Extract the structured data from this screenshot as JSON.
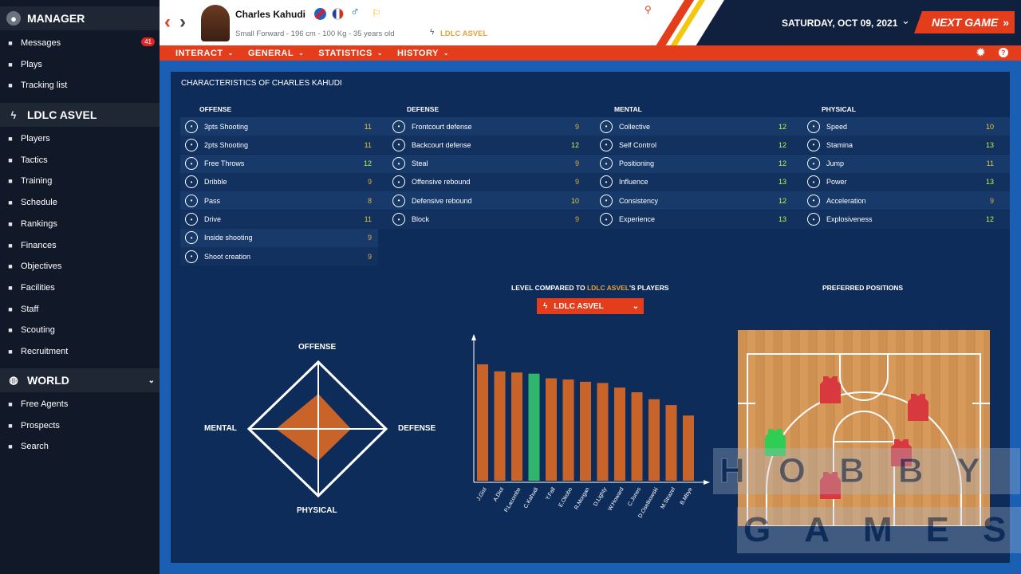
{
  "sidebar": {
    "manager_label": "MANAGER",
    "manager_items": [
      {
        "label": "Messages",
        "icon": "envelope-icon",
        "badge": "41"
      },
      {
        "label": "Plays",
        "icon": "clipboard-icon"
      },
      {
        "label": "Tracking list",
        "icon": "star-icon"
      }
    ],
    "team_label": "LDLC ASVEL",
    "team_items": [
      {
        "label": "Players",
        "icon": "players-icon"
      },
      {
        "label": "Tactics",
        "icon": "tactics-icon"
      },
      {
        "label": "Training",
        "icon": "training-icon"
      },
      {
        "label": "Schedule",
        "icon": "calendar-icon"
      },
      {
        "label": "Rankings",
        "icon": "rankings-icon"
      },
      {
        "label": "Finances",
        "icon": "finances-icon"
      },
      {
        "label": "Objectives",
        "icon": "objectives-icon"
      },
      {
        "label": "Facilities",
        "icon": "facilities-icon"
      },
      {
        "label": "Staff",
        "icon": "staff-icon"
      },
      {
        "label": "Scouting",
        "icon": "binoculars-icon"
      },
      {
        "label": "Recruitment",
        "icon": "recruitment-icon"
      }
    ],
    "world_label": "WORLD",
    "world_items": [
      {
        "label": "Free Agents",
        "icon": "free-agents-icon"
      },
      {
        "label": "Prospects",
        "icon": "prospects-icon"
      },
      {
        "label": "Search",
        "icon": "search-icon"
      }
    ]
  },
  "header": {
    "player_name": "Charles Kahudi",
    "player_info": "Small Forward - 196 cm - 100 Kg - 35 years old",
    "club": "LDLC ASVEL",
    "date": "SATURDAY, OCT 09, 2021",
    "next_game": "NEXT GAME"
  },
  "menu": [
    "INTERACT",
    "GENERAL",
    "STATISTICS",
    "HISTORY"
  ],
  "characteristics": {
    "title": "CHARACTERISTICS OF CHARLES KAHUDI",
    "columns": [
      {
        "title": "OFFENSE",
        "attrs": [
          {
            "name": "3pts Shooting",
            "value": "11"
          },
          {
            "name": "2pts Shooting",
            "value": "11"
          },
          {
            "name": "Free Throws",
            "value": "12"
          },
          {
            "name": "Dribble",
            "value": "9"
          },
          {
            "name": "Pass",
            "value": "8"
          },
          {
            "name": "Drive",
            "value": "11"
          },
          {
            "name": "Inside shooting",
            "value": "9"
          },
          {
            "name": "Shoot creation",
            "value": "9"
          }
        ]
      },
      {
        "title": "DEFENSE",
        "attrs": [
          {
            "name": "Frontcourt defense",
            "value": "9"
          },
          {
            "name": "Backcourt defense",
            "value": "12"
          },
          {
            "name": "Steal",
            "value": "9"
          },
          {
            "name": "Offensive rebound",
            "value": "9"
          },
          {
            "name": "Defensive rebound",
            "value": "10"
          },
          {
            "name": "Block",
            "value": "9"
          }
        ]
      },
      {
        "title": "MENTAL",
        "attrs": [
          {
            "name": "Collective",
            "value": "12"
          },
          {
            "name": "Self Control",
            "value": "12"
          },
          {
            "name": "Positioning",
            "value": "12"
          },
          {
            "name": "Influence",
            "value": "13"
          },
          {
            "name": "Consistency",
            "value": "12"
          },
          {
            "name": "Experience",
            "value": "13"
          }
        ]
      },
      {
        "title": "PHYSICAL",
        "attrs": [
          {
            "name": "Speed",
            "value": "10"
          },
          {
            "name": "Stamina",
            "value": "13"
          },
          {
            "name": "Jump",
            "value": "11"
          },
          {
            "name": "Power",
            "value": "13"
          },
          {
            "name": "Acceleration",
            "value": "9"
          },
          {
            "name": "Explosiveness",
            "value": "12"
          }
        ]
      }
    ]
  },
  "radar": {
    "top": "OFFENSE",
    "right": "DEFENSE",
    "bottom": "PHYSICAL",
    "left": "MENTAL"
  },
  "comparison": {
    "title_prefix": "LEVEL COMPARED TO ",
    "title_team": "LDLC ASVEL",
    "title_suffix": "'S PLAYERS",
    "selected_team": "LDLC ASVEL"
  },
  "preferred_positions": {
    "title": "PREFERRED POSITIONS"
  },
  "watermark": {
    "line1": "HOBBY",
    "line2": "GAMES"
  },
  "colors": {
    "accent": "#e33d1c",
    "bar": "#c8632a",
    "highlight": "#2fb66c",
    "panel": "#0e2c5a"
  },
  "chart_data": {
    "type": "bar",
    "categories": [
      "J.Gist",
      "A.Diot",
      "P.Lacombe",
      "C.Kahudi",
      "Y.Fall",
      "E.Okobo",
      "R.Morgan",
      "D.Lighty",
      "W.Howard",
      "C.Jones",
      "D.Osetkowski",
      "M.Strazel",
      "B.Mbye"
    ],
    "values": [
      100,
      94,
      93,
      92,
      88,
      87,
      85,
      84,
      80,
      76,
      70,
      65,
      56
    ],
    "highlight": "C.Kahudi",
    "ylim": [
      0,
      100
    ]
  }
}
